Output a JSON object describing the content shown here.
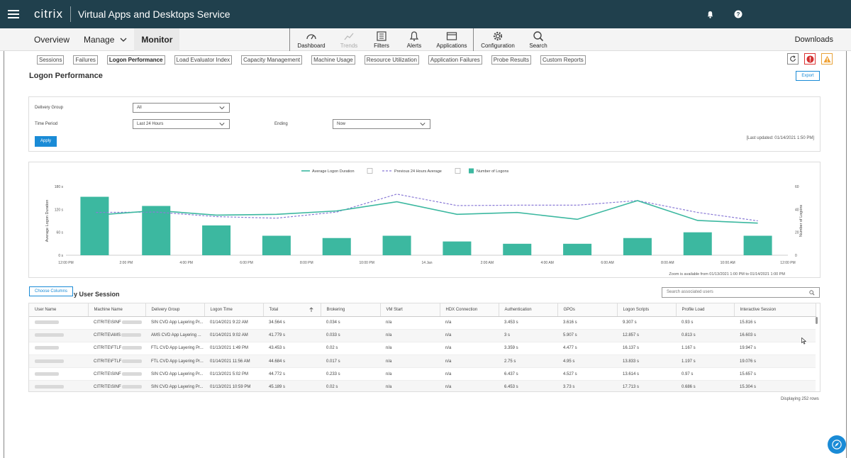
{
  "header": {
    "brand": "citrix",
    "product": "Virtual Apps and Desktops Service"
  },
  "nav": {
    "tabs": [
      {
        "label": "Overview"
      },
      {
        "label": "Manage"
      },
      {
        "label": "Monitor"
      }
    ],
    "toolbar": [
      {
        "label": "Dashboard",
        "icon": "dashboard-icon"
      },
      {
        "label": "Trends",
        "icon": "trends-icon"
      },
      {
        "label": "Filters",
        "icon": "filters-icon"
      },
      {
        "label": "Alerts",
        "icon": "bell-icon"
      },
      {
        "label": "Applications",
        "icon": "window-icon"
      },
      {
        "label": "Configuration",
        "icon": "gear-icon"
      },
      {
        "label": "Search",
        "icon": "search-icon"
      }
    ],
    "downloads": "Downloads"
  },
  "subtabs": [
    "Sessions",
    "Failures",
    "Logon Performance",
    "Load Evaluator Index",
    "Capacity Management",
    "Machine Usage",
    "Resource Utilization",
    "Application Failures",
    "Probe Results",
    "Custom Reports"
  ],
  "page": {
    "title": "Logon Performance",
    "export": "Export"
  },
  "filters": {
    "delivery_group_label": "Delivery Group",
    "delivery_group_value": "All",
    "time_period_label": "Time Period",
    "time_period_value": "Last 24 Hours",
    "ending_label": "Ending",
    "ending_value": "Now",
    "apply": "Apply",
    "last_updated": "[Last updated: 01/14/2021 1:50 PM]"
  },
  "chart_data": {
    "type": "bar",
    "legend": [
      "Average Logon Duration",
      "Previous 24 Hours Average",
      "Number of Logons"
    ],
    "ylabel_left": "Average Logon Duration",
    "ylabel_right": "Number of Logons",
    "yticks_left": [
      "0 s",
      "60 s",
      "120 s",
      "180 s"
    ],
    "yticks_right": [
      "0",
      "20",
      "40",
      "60"
    ],
    "ylim_left": [
      0,
      180
    ],
    "ylim_right": [
      0,
      60
    ],
    "xticks": [
      "12:00 PM",
      "2:00 PM",
      "4:00 PM",
      "6:00 PM",
      "8:00 PM",
      "10:00 PM",
      "14 Jan",
      "2:00 AM",
      "4:00 AM",
      "6:00 AM",
      "8:00 AM",
      "10:00 AM",
      "12:00 PM"
    ],
    "bar_x": [
      "1:00 PM",
      "3:00 PM",
      "5:00 PM",
      "7:00 PM",
      "9:00 PM",
      "11:00 PM",
      "1:00 AM",
      "3:00 AM",
      "5:00 AM",
      "7:00 AM",
      "9:00 AM",
      "11:00 AM"
    ],
    "series": [
      {
        "name": "Number of Logons",
        "axis": "right",
        "values": [
          51,
          43,
          26,
          17,
          15,
          17,
          12,
          10,
          10,
          15,
          20,
          17
        ]
      },
      {
        "name": "Average Logon Duration",
        "axis": "left",
        "values": [
          105,
          117,
          105,
          107,
          116,
          140,
          107,
          112,
          94,
          143,
          91,
          84
        ]
      },
      {
        "name": "Previous 24 Hours Average",
        "axis": "left",
        "values": [
          112,
          113,
          101,
          97,
          113,
          160,
          130,
          131,
          131,
          143,
          112,
          90
        ]
      }
    ],
    "zoom_note": "Zoom is available from 01/13/2021 1:00 PM to 01/14/2021 1:00 PM"
  },
  "table": {
    "choose_columns": "Choose Columns",
    "title": "y User Session",
    "search_placeholder": "Search associated users",
    "columns": [
      "User Name",
      "Machine Name",
      "Delivery Group",
      "Logon Time",
      "Total",
      "Brokering",
      "VM Start",
      "HDX Connection",
      "Authentication",
      "GPOs",
      "Logon Scripts",
      "Profile Load",
      "Interactive Session"
    ],
    "rows": [
      {
        "machine": "CITRITE\\SINF",
        "group": "SIN CVD App Layering Pr...",
        "time": "01/14/2021 9:22 AM",
        "total": "34.564 s",
        "brokering": "0.034 s",
        "vm": "n/a",
        "hdx": "n/a",
        "auth": "3.453 s",
        "gpos": "3.616 s",
        "scripts": "9.307 s",
        "profile": "0.93 s",
        "interactive": "15.816 s"
      },
      {
        "machine": "CITRITE\\AMS",
        "group": "AMS CVD App Layering ...",
        "time": "01/14/2021 9:02 AM",
        "total": "41.779 s",
        "brokering": "0.033 s",
        "vm": "n/a",
        "hdx": "n/a",
        "auth": "3 s",
        "gpos": "5.907 s",
        "scripts": "12.857 s",
        "profile": "0.813 s",
        "interactive": "16.603 s"
      },
      {
        "machine": "CITRITE\\FTLF",
        "group": "FTL CVD App Layering Pr...",
        "time": "01/13/2021 1:49 PM",
        "total": "43.453 s",
        "brokering": "0.02 s",
        "vm": "n/a",
        "hdx": "n/a",
        "auth": "3.359 s",
        "gpos": "4.477 s",
        "scripts": "16.137 s",
        "profile": "1.167 s",
        "interactive": "19.947 s"
      },
      {
        "machine": "CITRITE\\FTLF",
        "group": "FTL CVD App Layering Pr...",
        "time": "01/14/2021 11:56 AM",
        "total": "44.684 s",
        "brokering": "0.017 s",
        "vm": "n/a",
        "hdx": "n/a",
        "auth": "2.75 s",
        "gpos": "4.95 s",
        "scripts": "13.833 s",
        "profile": "1.197 s",
        "interactive": "19.076 s"
      },
      {
        "machine": "CITRITE\\SINF",
        "group": "SIN CVD App Layering Pr...",
        "time": "01/13/2021 5:02 PM",
        "total": "44.772 s",
        "brokering": "0.233 s",
        "vm": "n/a",
        "hdx": "n/a",
        "auth": "6.437 s",
        "gpos": "4.527 s",
        "scripts": "13.614 s",
        "profile": "0.97 s",
        "interactive": "15.657 s"
      },
      {
        "machine": "CITRITE\\SINF",
        "group": "SIN CVD App Layering Pr...",
        "time": "01/13/2021 10:59 PM",
        "total": "45.189 s",
        "brokering": "0.02 s",
        "vm": "n/a",
        "hdx": "n/a",
        "auth": "6.453 s",
        "gpos": "3.73 s",
        "scripts": "17.713 s",
        "profile": "0.686 s",
        "interactive": "15.304 s"
      }
    ],
    "displaying": "Displaying 252 rows"
  },
  "colors": {
    "topbar": "#20404d",
    "bars": "#3cb8a0",
    "line": "#3cb8a0",
    "dashed": "#8a7ad6",
    "accent": "#1a8bd6"
  }
}
